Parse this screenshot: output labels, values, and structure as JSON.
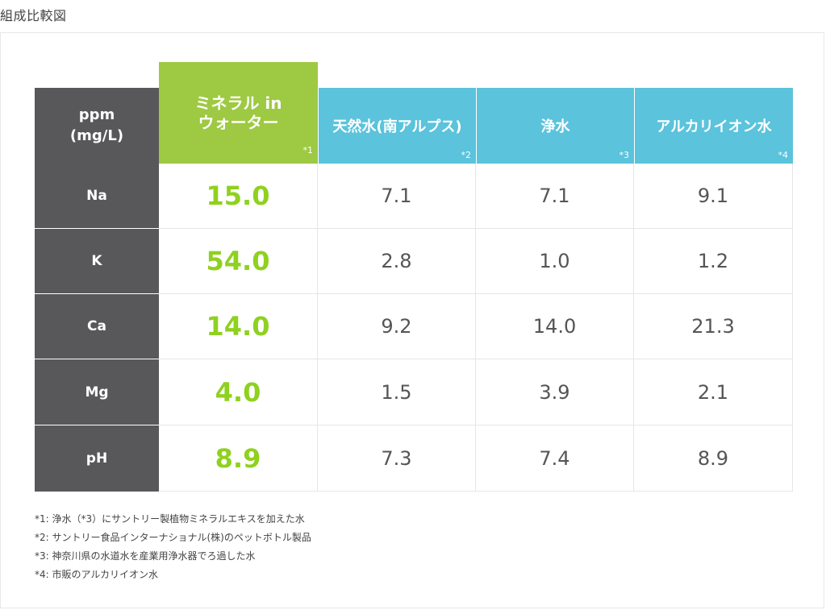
{
  "page_title": "組成比較図",
  "table": {
    "corner_line1": "ppm",
    "corner_line2": "(mg/L)",
    "columns": [
      {
        "line1": "ミネラル in",
        "line2": "ウォーター",
        "note": "*1",
        "accent": "#9ec942"
      },
      {
        "label": "天然水(南アルプス)",
        "note": "*2",
        "accent": "#5bc3dc"
      },
      {
        "label": "浄水",
        "note": "*3",
        "accent": "#5bc3dc"
      },
      {
        "label": "アルカリイオン水",
        "note": "*4",
        "accent": "#5bc3dc"
      }
    ],
    "rows": [
      {
        "label": "Na",
        "values": [
          "15.0",
          "7.1",
          "7.1",
          "9.1"
        ]
      },
      {
        "label": "K",
        "values": [
          "54.0",
          "2.8",
          "1.0",
          "1.2"
        ]
      },
      {
        "label": "Ca",
        "values": [
          "14.0",
          "9.2",
          "14.0",
          "21.3"
        ]
      },
      {
        "label": "Mg",
        "values": [
          "4.0",
          "1.5",
          "3.9",
          "2.1"
        ]
      },
      {
        "label": "pH",
        "values": [
          "8.9",
          "7.3",
          "7.4",
          "8.9"
        ]
      }
    ]
  },
  "footnotes": [
    "*1: 浄水（*3）にサントリー製植物ミネラルエキスを加えた水",
    "*2: サントリー食品インターナショナル(株)のペットボトル製品",
    "*3: 神奈川県の水道水を産業用浄水器でろ過した水",
    "*4: 市販のアルカリイオン水"
  ],
  "colors": {
    "row_header_bg": "#58585a",
    "highlight_value": "#8fd11f"
  }
}
